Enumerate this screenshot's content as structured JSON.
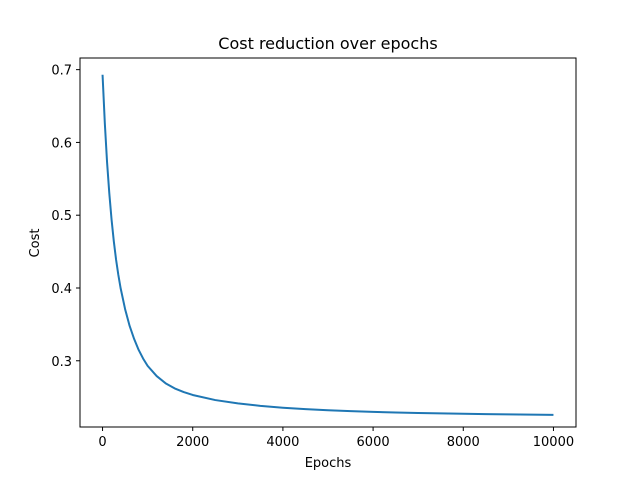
{
  "chart_data": {
    "type": "line",
    "title": "Cost reduction over epochs",
    "xlabel": "Epochs",
    "ylabel": "Cost",
    "xlim": [
      -500,
      10500
    ],
    "ylim": [
      0.209,
      0.716
    ],
    "x_ticks": [
      0,
      2000,
      4000,
      6000,
      8000,
      10000
    ],
    "x_tick_labels": [
      "0",
      "2000",
      "4000",
      "6000",
      "8000",
      "10000"
    ],
    "y_ticks": [
      0.3,
      0.4,
      0.5,
      0.6,
      0.7
    ],
    "y_tick_labels": [
      "0.3",
      "0.4",
      "0.5",
      "0.6",
      "0.7"
    ],
    "grid": false,
    "series": [
      {
        "color": "#1f77b4",
        "x": [
          0,
          50,
          100,
          150,
          200,
          250,
          300,
          350,
          400,
          500,
          600,
          700,
          800,
          900,
          1000,
          1200,
          1400,
          1600,
          1800,
          2000,
          2500,
          3000,
          3500,
          4000,
          4500,
          5000,
          5500,
          6000,
          6500,
          7000,
          7500,
          8000,
          8500,
          9000,
          9500,
          10000
        ],
        "y": [
          0.693,
          0.627,
          0.573,
          0.53,
          0.494,
          0.464,
          0.439,
          0.418,
          0.4,
          0.371,
          0.348,
          0.33,
          0.315,
          0.303,
          0.293,
          0.279,
          0.269,
          0.262,
          0.257,
          0.253,
          0.246,
          0.2415,
          0.238,
          0.2355,
          0.2335,
          0.232,
          0.2308,
          0.2298,
          0.229,
          0.2283,
          0.2277,
          0.2272,
          0.2267,
          0.2263,
          0.226,
          0.2257
        ]
      }
    ]
  }
}
